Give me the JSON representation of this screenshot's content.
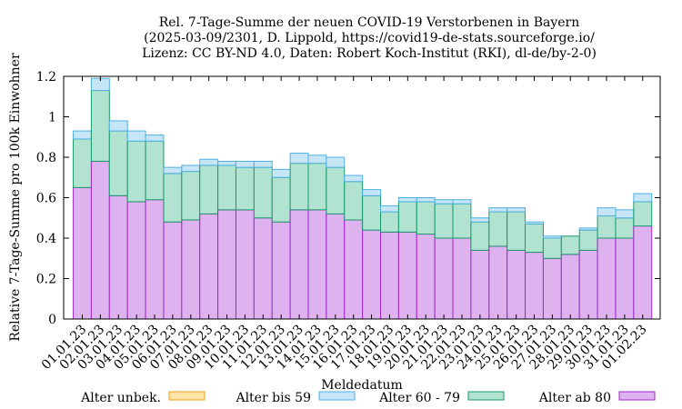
{
  "title": {
    "line1": "Rel. 7-Tage-Summe der neuen COVID-19 Verstorbenen in Bayern",
    "line2": "(2025-03-09/2301, D. Lippold, https://covid19-de-stats.sourceforge.io/",
    "line3": "Lizenz: CC BY-ND 4.0, Daten: Robert Koch-Institut (RKI), dl-de/by-2-0)"
  },
  "chart_data": {
    "type": "bar",
    "stacked": true,
    "xlabel": "Meldedatum",
    "ylabel": "Relative 7-Tage-Summe pro 100k Einwohner",
    "ylim": [
      0,
      1.2
    ],
    "yticks": [
      0,
      0.2,
      0.4,
      0.6,
      0.8,
      1,
      1.2
    ],
    "ytick_labels": [
      "0",
      "0.2",
      "0.4",
      "0.6",
      "0.8",
      "1",
      "1.2"
    ],
    "grid": false,
    "legend_position": "bottom",
    "categories": [
      "01.01.23",
      "02.01.23",
      "03.01.23",
      "04.01.23",
      "05.01.23",
      "06.01.23",
      "07.01.23",
      "08.01.23",
      "09.01.23",
      "10.01.23",
      "11.01.23",
      "12.01.23",
      "13.01.23",
      "14.01.23",
      "15.01.23",
      "16.01.23",
      "17.01.23",
      "18.01.23",
      "19.01.23",
      "20.01.23",
      "21.01.23",
      "22.01.23",
      "23.01.23",
      "24.01.23",
      "25.01.23",
      "26.01.23",
      "27.01.23",
      "28.01.23",
      "29.01.23",
      "30.01.23",
      "31.01.23",
      "01.02.23"
    ],
    "series": [
      {
        "name": "Alter unbek.",
        "fill": "#fde3a7",
        "stroke": "#e6a01e",
        "values": [
          0,
          0,
          0,
          0,
          0,
          0,
          0,
          0,
          0,
          0,
          0,
          0,
          0,
          0,
          0,
          0,
          0,
          0,
          0,
          0,
          0,
          0,
          0,
          0,
          0,
          0,
          0,
          0,
          0,
          0,
          0,
          0
        ]
      },
      {
        "name": "Alter bis 59",
        "fill": "#c6e6f7",
        "stroke": "#4fb0e3",
        "values": [
          0.04,
          0.06,
          0.05,
          0.05,
          0.03,
          0.03,
          0.03,
          0.03,
          0.02,
          0.03,
          0.03,
          0.04,
          0.05,
          0.04,
          0.05,
          0.03,
          0.03,
          0.03,
          0.02,
          0.02,
          0.02,
          0.02,
          0.02,
          0.02,
          0.02,
          0.01,
          0.01,
          0,
          0.01,
          0.04,
          0.04,
          0.04
        ]
      },
      {
        "name": "Alter 60 - 79",
        "fill": "#b2e2d0",
        "stroke": "#1a9a6c",
        "values": [
          0.24,
          0.35,
          0.32,
          0.3,
          0.29,
          0.24,
          0.24,
          0.24,
          0.22,
          0.21,
          0.25,
          0.22,
          0.23,
          0.23,
          0.23,
          0.19,
          0.17,
          0.1,
          0.15,
          0.16,
          0.17,
          0.17,
          0.14,
          0.17,
          0.19,
          0.14,
          0.1,
          0.09,
          0.1,
          0.11,
          0.1,
          0.12
        ]
      },
      {
        "name": "Alter ab 80",
        "fill": "#deb1ef",
        "stroke": "#9d2bc9",
        "values": [
          0.65,
          0.78,
          0.61,
          0.58,
          0.59,
          0.48,
          0.49,
          0.52,
          0.54,
          0.54,
          0.5,
          0.48,
          0.54,
          0.54,
          0.52,
          0.49,
          0.44,
          0.43,
          0.43,
          0.42,
          0.4,
          0.4,
          0.34,
          0.36,
          0.34,
          0.33,
          0.3,
          0.32,
          0.34,
          0.4,
          0.4,
          0.46
        ]
      }
    ]
  }
}
